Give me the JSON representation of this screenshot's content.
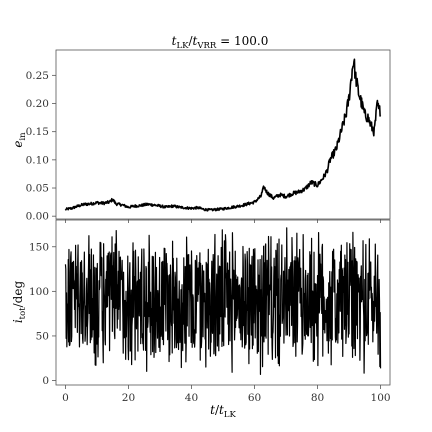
{
  "chart_data": [
    {
      "type": "line",
      "title": "t_LK/t_VRR = 100.0",
      "ylabel": "e_in",
      "xlim": [
        -3,
        103
      ],
      "ylim": [
        -0.005,
        0.295
      ],
      "yticks": [
        "0.00",
        "0.05",
        "0.10",
        "0.15",
        "0.20",
        "0.25"
      ],
      "ytick_values": [
        0.0,
        0.05,
        0.1,
        0.15,
        0.2,
        0.25
      ],
      "color": "#000000",
      "series": [
        {
          "x": [
            0,
            2,
            4,
            6,
            8,
            10,
            12,
            14,
            15,
            16,
            18,
            20,
            22,
            24,
            26,
            28,
            30,
            32,
            34,
            36,
            38,
            40,
            42,
            44,
            46,
            48,
            50,
            52,
            54,
            56,
            58,
            60,
            62,
            63,
            64,
            66,
            68,
            70,
            72,
            74,
            76,
            78,
            80,
            82,
            83,
            84,
            86,
            87,
            88,
            89,
            90,
            91,
            91.5,
            92,
            93,
            94,
            95,
            96,
            97,
            98,
            99,
            99.5,
            100
          ],
          "y": [
            0.012,
            0.014,
            0.018,
            0.021,
            0.022,
            0.024,
            0.023,
            0.025,
            0.03,
            0.022,
            0.02,
            0.016,
            0.018,
            0.019,
            0.021,
            0.02,
            0.018,
            0.016,
            0.018,
            0.016,
            0.015,
            0.014,
            0.015,
            0.012,
            0.011,
            0.012,
            0.013,
            0.015,
            0.017,
            0.019,
            0.022,
            0.025,
            0.035,
            0.052,
            0.042,
            0.032,
            0.038,
            0.035,
            0.04,
            0.043,
            0.048,
            0.06,
            0.055,
            0.07,
            0.08,
            0.1,
            0.12,
            0.14,
            0.16,
            0.18,
            0.21,
            0.26,
            0.278,
            0.25,
            0.22,
            0.2,
            0.18,
            0.175,
            0.16,
            0.15,
            0.2,
            0.185,
            0.19
          ]
        }
      ]
    },
    {
      "type": "line",
      "xlabel": "t/t_LK",
      "ylabel": "i_tot/deg",
      "xlim": [
        -3,
        103
      ],
      "ylim": [
        -5,
        180
      ],
      "xticks": [
        "0",
        "20",
        "40",
        "60",
        "80",
        "100"
      ],
      "xtick_values": [
        0,
        20,
        40,
        60,
        80,
        100
      ],
      "yticks": [
        "0",
        "50",
        "100",
        "150"
      ],
      "ytick_values": [
        0,
        50,
        100,
        150
      ],
      "color": "#000000",
      "series": [
        {
          "description_note": "",
          "x_start": 0,
          "x_end": 100,
          "ymin": 2,
          "ymax": 176,
          "mean": 90
        }
      ]
    }
  ]
}
